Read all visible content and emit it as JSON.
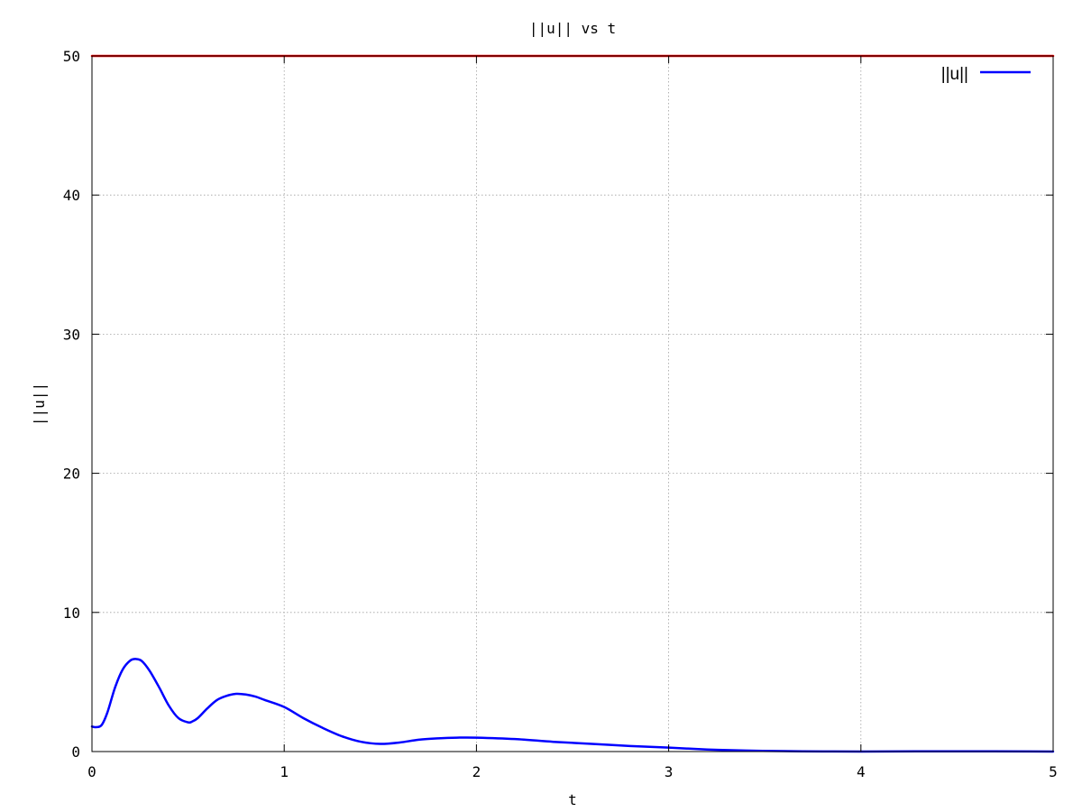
{
  "chart_data": {
    "type": "line",
    "title": "||u|| vs t",
    "xlabel": "t",
    "ylabel": "||u||",
    "xlim": [
      0,
      5
    ],
    "ylim": [
      0,
      50
    ],
    "xticks": [
      "0",
      "1",
      "2",
      "3",
      "4",
      "5"
    ],
    "yticks": [
      "0",
      "10",
      "20",
      "30",
      "40",
      "50"
    ],
    "grid": true,
    "legend_placement": "top-right",
    "series": [
      {
        "name": "||u||",
        "color": "#0000ff",
        "x": [
          0.0,
          0.02,
          0.05,
          0.08,
          0.12,
          0.16,
          0.2,
          0.23,
          0.26,
          0.3,
          0.35,
          0.4,
          0.45,
          0.5,
          0.52,
          0.55,
          0.6,
          0.65,
          0.7,
          0.75,
          0.8,
          0.85,
          0.9,
          1.0,
          1.1,
          1.2,
          1.3,
          1.4,
          1.5,
          1.6,
          1.7,
          1.8,
          1.9,
          2.0,
          2.2,
          2.4,
          2.6,
          2.8,
          3.0,
          3.2,
          3.4,
          3.6,
          3.8,
          4.0,
          4.5,
          5.0
        ],
        "y": [
          1.8,
          1.75,
          1.9,
          2.8,
          4.6,
          5.9,
          6.55,
          6.65,
          6.5,
          5.8,
          4.6,
          3.3,
          2.4,
          2.1,
          2.15,
          2.4,
          3.1,
          3.7,
          4.0,
          4.15,
          4.1,
          3.95,
          3.7,
          3.2,
          2.4,
          1.7,
          1.1,
          0.7,
          0.55,
          0.65,
          0.85,
          0.95,
          1.0,
          1.0,
          0.9,
          0.7,
          0.55,
          0.4,
          0.28,
          0.15,
          0.07,
          0.03,
          0.01,
          0.0,
          0.02,
          0.0
        ]
      },
      {
        "color": "#ff0000",
        "x": [
          0,
          5
        ],
        "y": [
          50,
          50
        ]
      }
    ]
  }
}
